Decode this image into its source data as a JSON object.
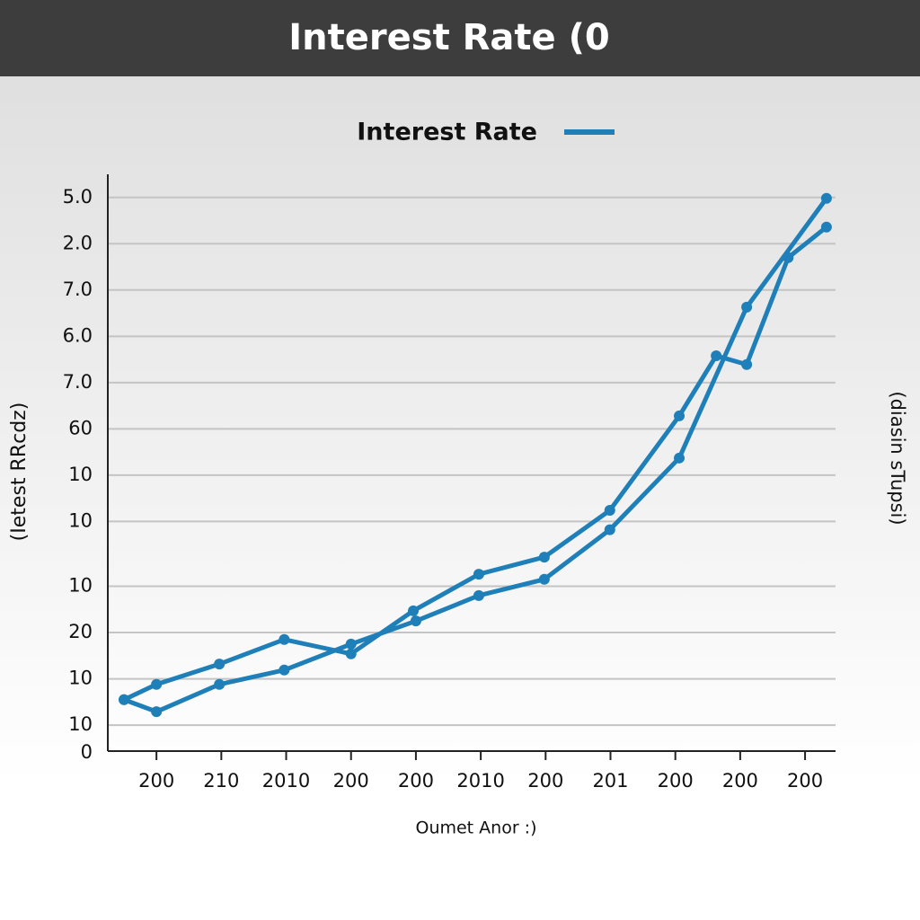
{
  "chart_data": {
    "type": "line",
    "title": "Interest Rate (0",
    "y_label": "(Ietest RRcdz)",
    "y2_label": "(diasin sTupsi)",
    "x_label": "Oumet Anor :)",
    "xlim": [
      0.25,
      11.47
    ],
    "xticks": [
      {
        "value": 1,
        "label": "200"
      },
      {
        "value": 2,
        "label": "210"
      },
      {
        "value": 3,
        "label": "2010"
      },
      {
        "value": 4,
        "label": "200"
      },
      {
        "value": 5,
        "label": "200"
      },
      {
        "value": 6,
        "label": "2010"
      },
      {
        "value": 7,
        "label": "200"
      },
      {
        "value": 8,
        "label": "201"
      },
      {
        "value": 9,
        "label": "200"
      },
      {
        "value": 10,
        "label": "200"
      },
      {
        "value": 11,
        "label": "200"
      }
    ],
    "ylim": [
      0,
      12.5
    ],
    "yticks": [
      0,
      {
        "value": 0.6,
        "label": "10"
      },
      {
        "value": 1.6,
        "label": "10"
      },
      {
        "value": 2.6,
        "label": "20"
      },
      {
        "value": 3.6,
        "label": "10"
      },
      {
        "value": 5,
        "label": "10"
      },
      {
        "value": 6,
        "label": "10"
      },
      {
        "value": 7,
        "label": "60"
      },
      {
        "value": 8,
        "label": "7.0"
      },
      {
        "value": 9,
        "label": "6.0"
      },
      {
        "value": 10,
        "label": "7.0"
      },
      {
        "value": 11,
        "label": "2.0"
      },
      {
        "value": 12,
        "label": "5.0"
      }
    ],
    "grid": true,
    "series": [
      {
        "name": "Interest Rate",
        "color": "#1f7fb8",
        "x": [
          0.5,
          1,
          1.97,
          2.97,
          4.0,
          4.96,
          5.97,
          6.98,
          7.99,
          9.06,
          9.63,
          10.1,
          10.74,
          11.33
        ],
        "values": [
          1.15,
          1.48,
          1.92,
          2.45,
          2.14,
          3.07,
          3.86,
          4.23,
          5.24,
          7.28,
          8.58,
          8.39,
          10.7,
          11.36
        ]
      },
      {
        "color": "#1f7fb8",
        "x": [
          0.5,
          1,
          1.97,
          2.97,
          4.0,
          5.0,
          5.97,
          6.98,
          7.99,
          9.06,
          10.1,
          11.33
        ],
        "values": [
          1.15,
          0.89,
          1.48,
          1.79,
          2.35,
          2.85,
          3.4,
          3.75,
          4.82,
          6.37,
          9.63,
          11.98
        ]
      }
    ]
  }
}
